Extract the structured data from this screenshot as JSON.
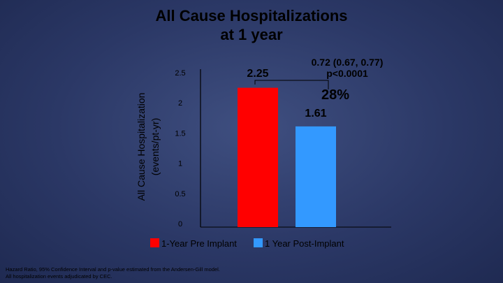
{
  "chart_data": {
    "type": "bar",
    "title": "All Cause Hospitalizations at 1 year",
    "title_lines": [
      "All Cause Hospitalizations",
      "at 1 year"
    ],
    "ylabel_lines": [
      "All Cause Hospitalization",
      "(events/pt-yr)"
    ],
    "xlabel": "",
    "ylim": [
      0,
      2.5
    ],
    "yticks": [
      "0",
      "0.5",
      "1",
      "1.5",
      "2",
      "2.5"
    ],
    "categories": [
      "1-Year Pre Implant",
      "1 Year Post-Implant"
    ],
    "values": [
      2.25,
      1.61
    ],
    "value_labels": [
      "2.25",
      "1.61"
    ],
    "colors": [
      "#ff0000",
      "#3399ff"
    ],
    "legend": [
      "1-Year Pre Implant",
      "1 Year Post-Implant"
    ],
    "legend_position": "bottom",
    "grid": false,
    "annotations": {
      "hazard_ratio": "0.72 (0.67, 0.77)",
      "p_value": "p<0.0001",
      "reduction": "28%"
    }
  },
  "footnotes": [
    "Hazard Ratio, 95% Confidence Interval and p-value estimated from the Andersen-Gill model.",
    "All hospitalization events adjudicated by CEC."
  ]
}
